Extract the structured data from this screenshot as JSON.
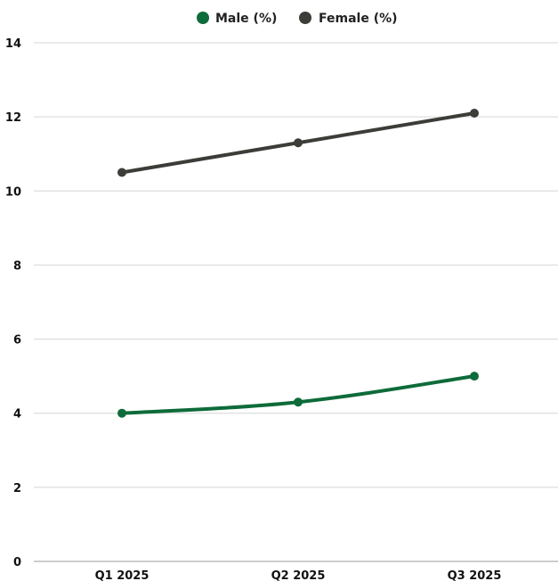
{
  "chart_data": {
    "type": "line",
    "categories": [
      "Q1 2025",
      "Q2 2025",
      "Q3 2025"
    ],
    "series": [
      {
        "name": "Male (%)",
        "values": [
          4.0,
          4.3,
          5.0
        ],
        "color": "#0e6b3a"
      },
      {
        "name": "Female (%)",
        "values": [
          10.5,
          11.3,
          12.1
        ],
        "color": "#3c3c38"
      }
    ],
    "ylim": [
      0,
      14
    ],
    "yticks": [
      0,
      2,
      4,
      6,
      8,
      10,
      12,
      14
    ],
    "grid": true,
    "legend_position": "top-center",
    "smooth": true
  }
}
